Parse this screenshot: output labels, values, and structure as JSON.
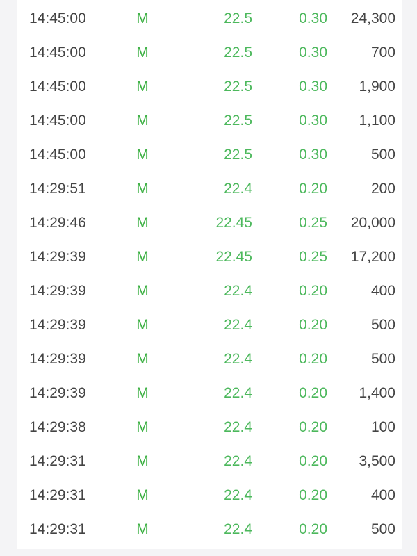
{
  "colors": {
    "up": "#4cb85c",
    "text": "#444444",
    "background": "#f4f4f6"
  },
  "trades": [
    {
      "time": "14:45:00",
      "flag": "M",
      "price": "22.5",
      "change": "0.30",
      "volume": "24,300"
    },
    {
      "time": "14:45:00",
      "flag": "M",
      "price": "22.5",
      "change": "0.30",
      "volume": "700"
    },
    {
      "time": "14:45:00",
      "flag": "M",
      "price": "22.5",
      "change": "0.30",
      "volume": "1,900"
    },
    {
      "time": "14:45:00",
      "flag": "M",
      "price": "22.5",
      "change": "0.30",
      "volume": "1,100"
    },
    {
      "time": "14:45:00",
      "flag": "M",
      "price": "22.5",
      "change": "0.30",
      "volume": "500"
    },
    {
      "time": "14:29:51",
      "flag": "M",
      "price": "22.4",
      "change": "0.20",
      "volume": "200"
    },
    {
      "time": "14:29:46",
      "flag": "M",
      "price": "22.45",
      "change": "0.25",
      "volume": "20,000"
    },
    {
      "time": "14:29:39",
      "flag": "M",
      "price": "22.45",
      "change": "0.25",
      "volume": "17,200"
    },
    {
      "time": "14:29:39",
      "flag": "M",
      "price": "22.4",
      "change": "0.20",
      "volume": "400"
    },
    {
      "time": "14:29:39",
      "flag": "M",
      "price": "22.4",
      "change": "0.20",
      "volume": "500"
    },
    {
      "time": "14:29:39",
      "flag": "M",
      "price": "22.4",
      "change": "0.20",
      "volume": "500"
    },
    {
      "time": "14:29:39",
      "flag": "M",
      "price": "22.4",
      "change": "0.20",
      "volume": "1,400"
    },
    {
      "time": "14:29:38",
      "flag": "M",
      "price": "22.4",
      "change": "0.20",
      "volume": "100"
    },
    {
      "time": "14:29:31",
      "flag": "M",
      "price": "22.4",
      "change": "0.20",
      "volume": "3,500"
    },
    {
      "time": "14:29:31",
      "flag": "M",
      "price": "22.4",
      "change": "0.20",
      "volume": "400"
    },
    {
      "time": "14:29:31",
      "flag": "M",
      "price": "22.4",
      "change": "0.20",
      "volume": "500"
    }
  ]
}
